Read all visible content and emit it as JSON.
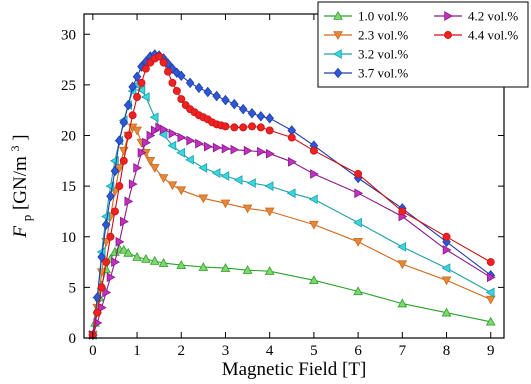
{
  "chart_data": {
    "type": "line",
    "title": "",
    "xlabel": "Magnetic Field [T]",
    "ylabel_main": "F",
    "ylabel_sub": "p",
    "ylabel_unit": " [GN/m",
    "ylabel_sup": "3",
    "ylabel_close": "]",
    "xlim": [
      -0.2,
      9.3
    ],
    "ylim": [
      0,
      32
    ],
    "xticks": [
      0,
      1,
      2,
      3,
      4,
      5,
      6,
      7,
      8,
      9
    ],
    "yticks": [
      0,
      5,
      10,
      15,
      20,
      25,
      30
    ],
    "grid": false,
    "legend_position": "top-right",
    "legend_columns": 2,
    "series": [
      {
        "name": "1.0 vol.%",
        "color": "#2ca02c",
        "fill": "#7fd66b",
        "marker": "triangle-up",
        "x": [
          0.0,
          0.05,
          0.1,
          0.15,
          0.2,
          0.3,
          0.4,
          0.5,
          0.6,
          0.7,
          0.8,
          1.0,
          1.2,
          1.4,
          1.6,
          2.0,
          2.5,
          3.0,
          3.5,
          4.0,
          5.0,
          6.0,
          7.0,
          8.0,
          9.0
        ],
        "y": [
          0.3,
          1.5,
          2.8,
          4.0,
          5.2,
          6.8,
          7.8,
          8.5,
          8.8,
          8.7,
          8.4,
          8.0,
          7.8,
          7.6,
          7.4,
          7.2,
          7.0,
          6.9,
          6.7,
          6.6,
          5.7,
          4.6,
          3.4,
          2.5,
          1.6
        ]
      },
      {
        "name": "2.3 vol.%",
        "color": "#d2691e",
        "fill": "#e08a3c",
        "marker": "triangle-down",
        "x": [
          0.0,
          0.1,
          0.2,
          0.3,
          0.4,
          0.5,
          0.6,
          0.7,
          0.8,
          0.9,
          1.0,
          1.1,
          1.2,
          1.3,
          1.4,
          1.6,
          1.8,
          2.0,
          2.5,
          3.0,
          3.5,
          4.0,
          5.0,
          6.0,
          7.0,
          8.0,
          9.0
        ],
        "y": [
          0.3,
          3.0,
          6.5,
          9.5,
          12.0,
          14.5,
          16.8,
          18.5,
          20.0,
          20.8,
          20.5,
          19.3,
          18.3,
          17.5,
          16.8,
          15.8,
          15.1,
          14.6,
          13.8,
          13.3,
          12.8,
          12.5,
          11.2,
          9.5,
          7.3,
          5.7,
          3.8
        ]
      },
      {
        "name": "3.2 vol.%",
        "color": "#1fa0a8",
        "fill": "#39d5e0",
        "marker": "triangle-left",
        "x": [
          0.0,
          0.1,
          0.2,
          0.3,
          0.4,
          0.5,
          0.6,
          0.7,
          0.8,
          0.9,
          1.0,
          1.1,
          1.2,
          1.4,
          1.6,
          1.8,
          2.0,
          2.2,
          2.5,
          2.8,
          3.0,
          3.3,
          3.6,
          4.0,
          4.5,
          5.0,
          6.0,
          7.0,
          8.0,
          9.0
        ],
        "y": [
          0.3,
          4.0,
          8.5,
          12.0,
          15.0,
          17.5,
          19.5,
          21.5,
          23.0,
          24.4,
          25.0,
          24.5,
          23.8,
          21.8,
          20.1,
          19.0,
          18.3,
          17.6,
          16.8,
          16.3,
          16.0,
          15.6,
          15.3,
          15.0,
          14.3,
          13.7,
          11.4,
          9.0,
          6.9,
          4.5
        ]
      },
      {
        "name": "3.7 vol.%",
        "color": "#1f3fa8",
        "fill": "#2f57d6",
        "marker": "diamond",
        "x": [
          0.0,
          0.1,
          0.2,
          0.3,
          0.4,
          0.5,
          0.6,
          0.7,
          0.8,
          0.9,
          1.0,
          1.1,
          1.2,
          1.3,
          1.4,
          1.5,
          1.6,
          1.7,
          1.8,
          1.9,
          2.0,
          2.2,
          2.4,
          2.6,
          2.8,
          3.0,
          3.2,
          3.4,
          3.6,
          3.8,
          4.0,
          4.5,
          5.0,
          6.0,
          7.0,
          8.0,
          9.0
        ],
        "y": [
          0.3,
          4.0,
          8.0,
          11.2,
          14.0,
          16.5,
          19.5,
          21.3,
          23.0,
          24.8,
          25.8,
          26.8,
          27.3,
          27.8,
          28.0,
          27.9,
          27.6,
          27.1,
          26.6,
          26.2,
          25.9,
          25.2,
          24.7,
          24.3,
          23.9,
          23.5,
          23.1,
          22.6,
          22.2,
          21.9,
          21.7,
          20.5,
          19.0,
          15.8,
          12.8,
          9.5,
          6.2
        ]
      },
      {
        "name": "4.2 vol.%",
        "color": "#8b1a8b",
        "fill": "#c030c0",
        "marker": "triangle-right",
        "x": [
          0.0,
          0.1,
          0.2,
          0.3,
          0.4,
          0.5,
          0.6,
          0.7,
          0.8,
          0.9,
          1.0,
          1.1,
          1.2,
          1.3,
          1.4,
          1.5,
          1.6,
          1.8,
          2.0,
          2.2,
          2.4,
          2.6,
          2.8,
          3.0,
          3.2,
          3.5,
          3.8,
          4.0,
          4.5,
          5.0,
          6.0,
          7.0,
          8.0,
          9.0
        ],
        "y": [
          0.3,
          1.5,
          3.0,
          4.5,
          6.0,
          7.5,
          9.5,
          11.5,
          13.5,
          15.2,
          16.8,
          18.3,
          19.3,
          20.0,
          20.5,
          20.8,
          20.6,
          20.2,
          19.8,
          19.5,
          19.2,
          18.9,
          18.8,
          18.7,
          18.6,
          18.5,
          18.4,
          18.2,
          17.4,
          16.2,
          14.3,
          12.0,
          8.7,
          6.0
        ]
      },
      {
        "name": "4.4 vol.%",
        "color": "#cc1111",
        "fill": "#ee2222",
        "marker": "circle",
        "x": [
          0.0,
          0.1,
          0.2,
          0.3,
          0.4,
          0.5,
          0.6,
          0.7,
          0.8,
          0.9,
          1.0,
          1.1,
          1.2,
          1.3,
          1.4,
          1.5,
          1.6,
          1.7,
          1.8,
          1.9,
          2.0,
          2.1,
          2.2,
          2.3,
          2.4,
          2.5,
          2.6,
          2.7,
          2.8,
          2.9,
          3.0,
          3.2,
          3.4,
          3.6,
          3.8,
          4.0,
          4.5,
          5.0,
          6.0,
          7.0,
          8.0,
          9.0
        ],
        "y": [
          0.3,
          2.5,
          5.0,
          7.5,
          10.0,
          12.5,
          15.0,
          17.5,
          20.0,
          22.0,
          23.8,
          25.2,
          26.6,
          27.2,
          27.6,
          27.8,
          27.2,
          26.3,
          25.2,
          24.4,
          23.6,
          23.0,
          22.6,
          22.3,
          22.0,
          21.8,
          21.6,
          21.3,
          21.1,
          21.0,
          20.9,
          20.8,
          20.8,
          20.9,
          20.8,
          20.5,
          19.8,
          18.5,
          16.2,
          12.5,
          10.0,
          7.5
        ]
      }
    ]
  }
}
